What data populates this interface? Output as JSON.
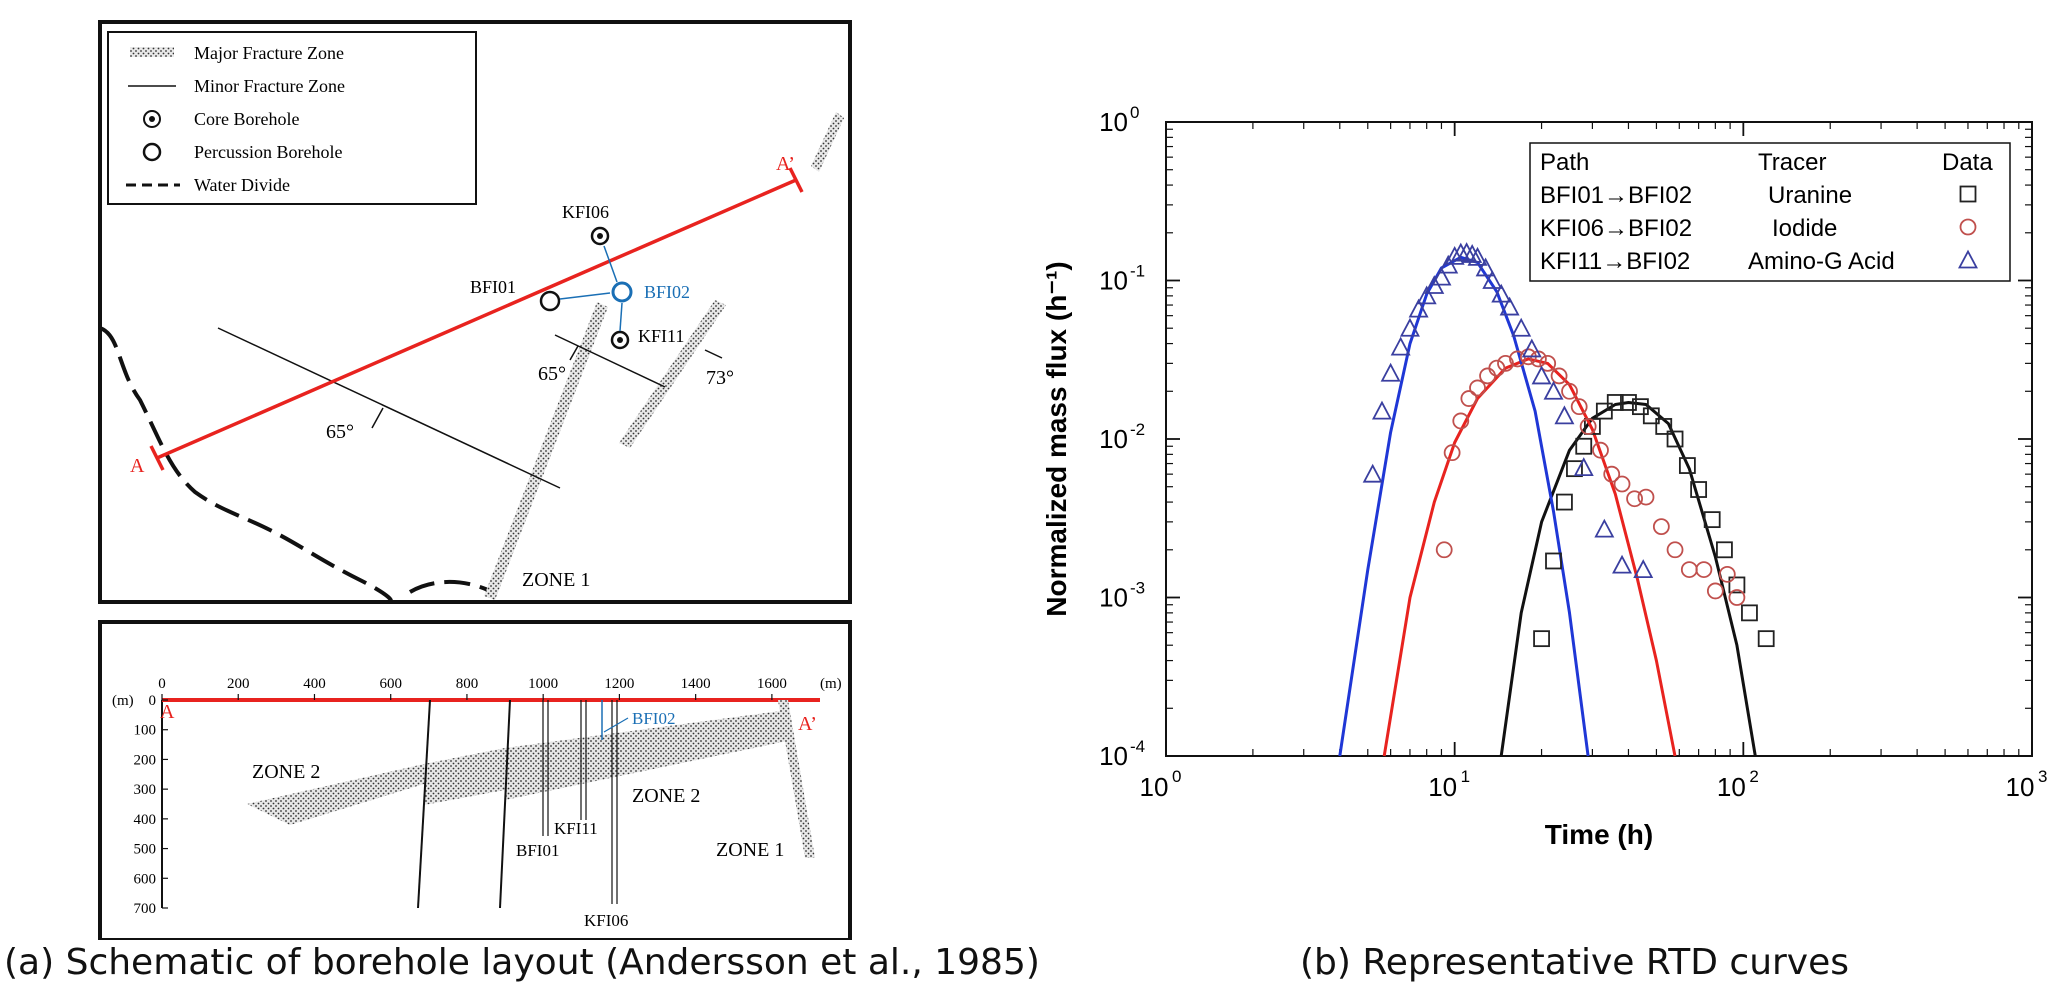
{
  "captions": {
    "a": "(a) Schematic of borehole layout (Andersson et al., 1985)",
    "b": "(b) Representative RTD curves"
  },
  "plan_view": {
    "legend": [
      {
        "label": "Major Fracture Zone",
        "symbol": "hatched-bar"
      },
      {
        "label": "Minor Fracture Zone",
        "symbol": "thin-line"
      },
      {
        "label": "Core Borehole",
        "symbol": "dotted-circle"
      },
      {
        "label": "Percussion Borehole",
        "symbol": "open-circle"
      },
      {
        "label": "Water Divide",
        "symbol": "dashed-line"
      }
    ],
    "section_start": "A",
    "section_end": "A’",
    "boreholes": {
      "kfi06": "KFI06",
      "bfi01": "BFI01",
      "bfi02": "BFI02",
      "kfi11": "KFI11"
    },
    "dips": {
      "d1": "65°",
      "d2": "73°",
      "d3": "65°"
    },
    "zone_label": "ZONE 1",
    "colors": {
      "section_line": "#e8231f",
      "bfi02": "#1a6fb5"
    }
  },
  "cross_section": {
    "x_unit": "(m)",
    "y_unit": "(m)",
    "x_ticks": [
      0,
      200,
      400,
      600,
      800,
      1000,
      1200,
      1400,
      1600
    ],
    "y_ticks": [
      0,
      100,
      200,
      300,
      400,
      500,
      600,
      700
    ],
    "start_label": "A",
    "end_label": "A’",
    "zones": {
      "zone2_left": "ZONE 2",
      "zone2_mid": "ZONE 2",
      "zone1": "ZONE 1"
    },
    "boreholes": {
      "bfi02": "BFI02",
      "kfi11": "KFI11",
      "bfi01": "BFI01",
      "kfi06": "KFI06"
    }
  },
  "chart_data": {
    "type": "scatter",
    "xlabel": "Time (h)",
    "ylabel": "Normalized mass flux (h⁻¹)",
    "xscale": "log",
    "yscale": "log",
    "xlim": [
      1,
      1000
    ],
    "ylim": [
      0.0001,
      1
    ],
    "x_ticks": [
      1,
      10,
      100,
      1000
    ],
    "y_ticks": [
      0.0001,
      0.001,
      0.01,
      0.1,
      1
    ],
    "x_tick_labels": [
      {
        "base": "10",
        "exp": "0"
      },
      {
        "base": "10",
        "exp": "1"
      },
      {
        "base": "10",
        "exp": "2"
      },
      {
        "base": "10",
        "exp": "3"
      }
    ],
    "y_tick_labels": [
      {
        "base": "10",
        "exp": "-4"
      },
      {
        "base": "10",
        "exp": "-3"
      },
      {
        "base": "10",
        "exp": "-2"
      },
      {
        "base": "10",
        "exp": "-1"
      },
      {
        "base": "10",
        "exp": "0"
      }
    ],
    "legend": {
      "placement": "top-right",
      "headers": [
        "Path",
        "Tracer",
        "Data"
      ]
    },
    "series": [
      {
        "name": "BFI01→BFI02",
        "tracer": "Uranine",
        "marker": "square",
        "color": "#222222",
        "points": [
          [
            20,
            0.00055
          ],
          [
            22,
            0.0017
          ],
          [
            24,
            0.004
          ],
          [
            26,
            0.0065
          ],
          [
            28,
            0.009
          ],
          [
            30,
            0.012
          ],
          [
            33,
            0.015
          ],
          [
            36,
            0.017
          ],
          [
            40,
            0.017
          ],
          [
            44,
            0.016
          ],
          [
            48,
            0.014
          ],
          [
            53,
            0.012
          ],
          [
            58,
            0.01
          ],
          [
            64,
            0.0068
          ],
          [
            70,
            0.0048
          ],
          [
            78,
            0.0031
          ],
          [
            86,
            0.002
          ],
          [
            95,
            0.0012
          ],
          [
            105,
            0.0008
          ],
          [
            120,
            0.00055
          ]
        ],
        "fit": [
          [
            14.5,
            0.0001
          ],
          [
            17,
            0.0008
          ],
          [
            20,
            0.003
          ],
          [
            25,
            0.0085
          ],
          [
            30,
            0.0135
          ],
          [
            36,
            0.0165
          ],
          [
            40,
            0.017
          ],
          [
            46,
            0.0165
          ],
          [
            55,
            0.0125
          ],
          [
            65,
            0.0065
          ],
          [
            80,
            0.0018
          ],
          [
            95,
            0.0005
          ],
          [
            110,
            0.0001
          ]
        ]
      },
      {
        "name": "KFI06→BFI02",
        "tracer": "Iodide",
        "marker": "circle",
        "color": "#c0504d",
        "points": [
          [
            9.2,
            0.002
          ],
          [
            9.8,
            0.0082
          ],
          [
            10.5,
            0.013
          ],
          [
            11.2,
            0.018
          ],
          [
            12,
            0.021
          ],
          [
            13,
            0.025
          ],
          [
            14,
            0.028
          ],
          [
            15,
            0.03
          ],
          [
            16.5,
            0.032
          ],
          [
            18,
            0.033
          ],
          [
            19.5,
            0.032
          ],
          [
            21,
            0.03
          ],
          [
            23,
            0.025
          ],
          [
            25,
            0.02
          ],
          [
            27,
            0.016
          ],
          [
            29,
            0.012
          ],
          [
            32,
            0.0085
          ],
          [
            35,
            0.006
          ],
          [
            38,
            0.0052
          ],
          [
            42,
            0.0042
          ],
          [
            46,
            0.0043
          ],
          [
            52,
            0.0028
          ],
          [
            58,
            0.002
          ],
          [
            65,
            0.0015
          ],
          [
            73,
            0.0015
          ],
          [
            80,
            0.0011
          ],
          [
            88,
            0.0014
          ],
          [
            95,
            0.001
          ]
        ],
        "fit": [
          [
            5.7,
            0.0001
          ],
          [
            7,
            0.001
          ],
          [
            8.5,
            0.004
          ],
          [
            10,
            0.0095
          ],
          [
            12,
            0.018
          ],
          [
            15,
            0.028
          ],
          [
            18,
            0.032
          ],
          [
            21,
            0.03
          ],
          [
            25,
            0.022
          ],
          [
            30,
            0.0115
          ],
          [
            36,
            0.0045
          ],
          [
            43,
            0.0013
          ],
          [
            50,
            0.0004
          ],
          [
            58,
            0.0001
          ]
        ]
      },
      {
        "name": "KFI11→BFI02",
        "tracer": "Amino-G Acid",
        "marker": "triangle",
        "color": "#3a3fa0",
        "points": [
          [
            5.2,
            0.006
          ],
          [
            5.6,
            0.015
          ],
          [
            6,
            0.026
          ],
          [
            6.5,
            0.038
          ],
          [
            7,
            0.05
          ],
          [
            7.5,
            0.066
          ],
          [
            8,
            0.08
          ],
          [
            8.5,
            0.093
          ],
          [
            9,
            0.105
          ],
          [
            9.5,
            0.125
          ],
          [
            10,
            0.142
          ],
          [
            10.5,
            0.149
          ],
          [
            11,
            0.15
          ],
          [
            11.5,
            0.146
          ],
          [
            12,
            0.14
          ],
          [
            12.8,
            0.12
          ],
          [
            13.5,
            0.1
          ],
          [
            14.5,
            0.082
          ],
          [
            15.5,
            0.068
          ],
          [
            17,
            0.05
          ],
          [
            18.5,
            0.037
          ],
          [
            20,
            0.025
          ],
          [
            22,
            0.02
          ],
          [
            24,
            0.014
          ],
          [
            28,
            0.0066
          ],
          [
            33,
            0.0027
          ],
          [
            38,
            0.0016
          ],
          [
            45,
            0.0015
          ]
        ],
        "fit": [
          [
            4,
            0.0001
          ],
          [
            5,
            0.0015
          ],
          [
            6,
            0.011
          ],
          [
            7,
            0.04
          ],
          [
            8,
            0.082
          ],
          [
            9,
            0.12
          ],
          [
            10.5,
            0.14
          ],
          [
            12,
            0.13
          ],
          [
            14,
            0.085
          ],
          [
            16,
            0.045
          ],
          [
            19,
            0.015
          ],
          [
            22,
            0.0035
          ],
          [
            25,
            0.0008
          ],
          [
            29,
            0.0001
          ]
        ]
      }
    ]
  }
}
